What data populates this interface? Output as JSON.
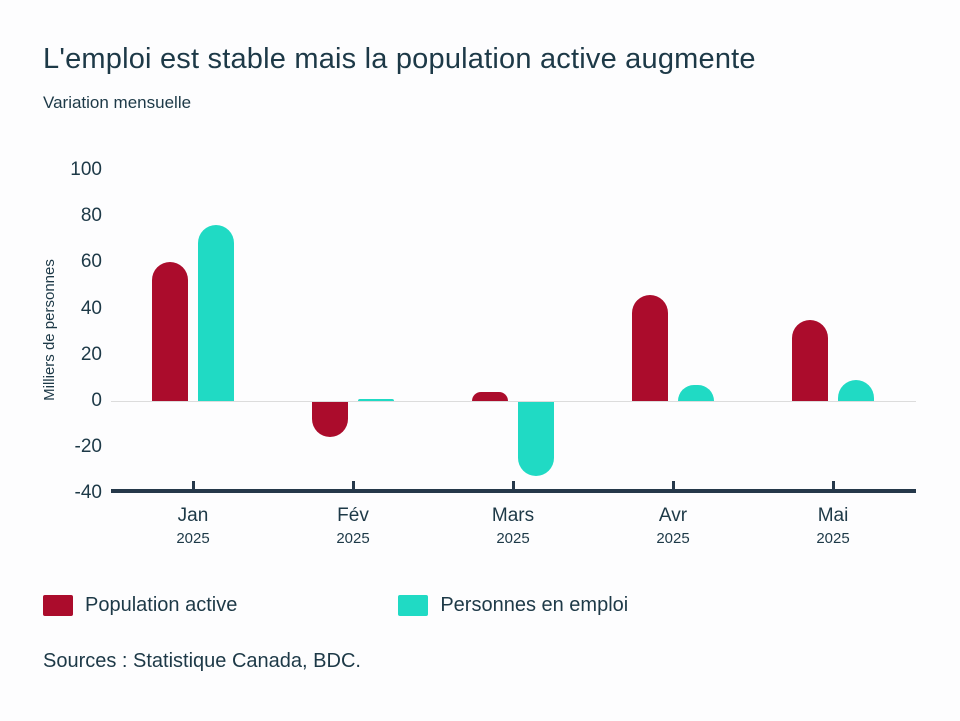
{
  "title": "L'emploi est stable mais la population active augmente",
  "subtitle": "Variation mensuelle",
  "source": "Sources : Statistique Canada, BDC.",
  "colors": {
    "population_active": "#AB0C2C",
    "personnes_en_emploi": "#20DAC4",
    "text": "#1D3947",
    "axis": "#25384A",
    "zero_line": "#DCDCDC",
    "background": "#FDFDFE"
  },
  "legend": [
    {
      "label": "Population active",
      "color": "#AB0C2C"
    },
    {
      "label": "Personnes en emploi",
      "color": "#20DAC4"
    }
  ],
  "chart_data": {
    "type": "bar",
    "title": "L'emploi est stable mais la population active augmente",
    "subtitle": "Variation mensuelle",
    "xlabel": "",
    "ylabel": "Milliers de personnes",
    "categories": [
      {
        "month": "Jan",
        "year": "2025"
      },
      {
        "month": "Fév",
        "year": "2025"
      },
      {
        "month": "Mars",
        "year": "2025"
      },
      {
        "month": "Avr",
        "year": "2025"
      },
      {
        "month": "Mai",
        "year": "2025"
      }
    ],
    "series": [
      {
        "name": "Population active",
        "color": "#AB0C2C",
        "values": [
          60,
          -15,
          4,
          46,
          35
        ]
      },
      {
        "name": "Personnes en emploi",
        "color": "#20DAC4",
        "values": [
          76,
          1,
          -32,
          7,
          9
        ]
      }
    ],
    "ylim": [
      -40,
      100
    ],
    "yticks": [
      100,
      80,
      60,
      40,
      20,
      0,
      -20,
      -40
    ],
    "grid": false,
    "legend_position": "bottom"
  }
}
